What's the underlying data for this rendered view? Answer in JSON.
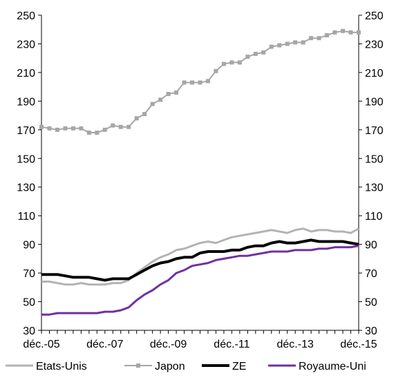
{
  "chart_data": {
    "type": "line",
    "title": "",
    "xlabel": "",
    "ylabel": "",
    "ylim": [
      30,
      250
    ],
    "y_ticks": [
      30,
      50,
      70,
      90,
      110,
      130,
      150,
      170,
      190,
      210,
      230,
      250
    ],
    "y_axes": "left-and-right",
    "x_tick_labels": [
      "déc.-05",
      "déc.-07",
      "déc.-09",
      "déc.-11",
      "déc.-13",
      "déc.-15"
    ],
    "x": [
      "déc.-05",
      "mars-06",
      "juin-06",
      "sept.-06",
      "déc.-06",
      "mars-07",
      "juin-07",
      "sept.-07",
      "déc.-07",
      "mars-08",
      "juin-08",
      "sept.-08",
      "déc.-08",
      "mars-09",
      "juin-09",
      "sept.-09",
      "déc.-09",
      "mars-10",
      "juin-10",
      "sept.-10",
      "déc.-10",
      "mars-11",
      "juin-11",
      "sept.-11",
      "déc.-11",
      "mars-12",
      "juin-12",
      "sept.-12",
      "déc.-12",
      "mars-13",
      "juin-13",
      "sept.-13",
      "déc.-13",
      "mars-14",
      "juin-14",
      "sept.-14",
      "déc.-14",
      "mars-15",
      "juin-15",
      "sept.-15",
      "déc.-15"
    ],
    "grid": false,
    "legend": "bottom",
    "series": [
      {
        "name": "Etats-Unis",
        "color": "#b3b3b3",
        "markers": false,
        "values": [
          64,
          64,
          63,
          62,
          62,
          63,
          62,
          62,
          62,
          63,
          63,
          65,
          70,
          74,
          78,
          81,
          83,
          86,
          87,
          89,
          91,
          92,
          91,
          93,
          95,
          96,
          97,
          98,
          99,
          100,
          99,
          98,
          100,
          101,
          99,
          100,
          100,
          99,
          99,
          98,
          101
        ]
      },
      {
        "name": "Japon",
        "color": "#a6a6a6",
        "markers": true,
        "values": [
          172,
          171,
          170,
          171,
          171,
          171,
          168,
          168,
          170,
          173,
          172,
          172,
          178,
          181,
          188,
          191,
          195,
          196,
          203,
          203,
          203,
          204,
          211,
          216,
          217,
          217,
          221,
          223,
          224,
          228,
          229,
          230,
          231,
          231,
          234,
          234,
          236,
          238,
          239,
          238,
          238
        ]
      },
      {
        "name": "ZE",
        "color": "#000000",
        "markers": false,
        "values": [
          69,
          69,
          69,
          68,
          67,
          67,
          67,
          66,
          65,
          66,
          66,
          66,
          69,
          72,
          75,
          77,
          78,
          80,
          81,
          81,
          84,
          85,
          85,
          85,
          86,
          86,
          88,
          89,
          89,
          91,
          92,
          91,
          91,
          92,
          93,
          92,
          92,
          92,
          92,
          91,
          90
        ]
      },
      {
        "name": "Royaume-Uni",
        "color": "#7030a0",
        "markers": false,
        "values": [
          41,
          41,
          42,
          42,
          42,
          42,
          42,
          42,
          43,
          43,
          44,
          46,
          51,
          55,
          58,
          62,
          65,
          70,
          72,
          75,
          76,
          77,
          79,
          80,
          81,
          82,
          82,
          83,
          84,
          85,
          85,
          85,
          86,
          86,
          86,
          87,
          87,
          88,
          88,
          88,
          89
        ]
      }
    ]
  }
}
